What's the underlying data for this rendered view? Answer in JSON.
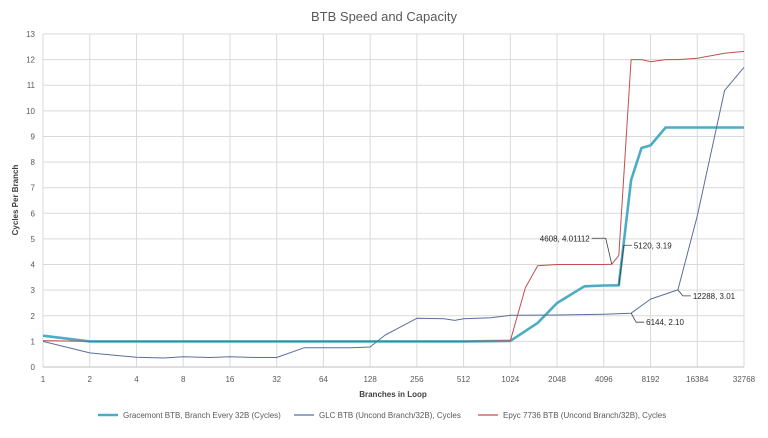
{
  "chart_data": {
    "type": "line",
    "title": "BTB Speed and Capacity",
    "xlabel": "Branches in Loop",
    "ylabel": "Cycles Per Branch",
    "x_scale": "log2",
    "xlim": [
      1,
      32768
    ],
    "ylim": [
      0,
      13
    ],
    "x_ticks": [
      1,
      2,
      4,
      8,
      16,
      32,
      64,
      128,
      256,
      512,
      1024,
      2048,
      4096,
      8192,
      16384,
      32768
    ],
    "y_ticks": [
      0,
      1,
      2,
      3,
      4,
      5,
      6,
      7,
      8,
      9,
      10,
      11,
      12,
      13
    ],
    "grid": "both",
    "legend_position": "bottom",
    "series": [
      {
        "name": "Gracemont BTB, Branch Every 32B (Cycles)",
        "color": "#4bacc6",
        "width": "thick",
        "points": [
          [
            1,
            1.22
          ],
          [
            2,
            1.0
          ],
          [
            4,
            1.0
          ],
          [
            8,
            1.0
          ],
          [
            16,
            1.0
          ],
          [
            32,
            1.0
          ],
          [
            64,
            1.0
          ],
          [
            128,
            1.0
          ],
          [
            256,
            1.0
          ],
          [
            512,
            1.0
          ],
          [
            1024,
            1.02
          ],
          [
            1536,
            1.72
          ],
          [
            2048,
            2.5
          ],
          [
            3072,
            3.15
          ],
          [
            4096,
            3.18
          ],
          [
            5120,
            3.19
          ],
          [
            6144,
            7.3
          ],
          [
            7168,
            8.55
          ],
          [
            8192,
            8.65
          ],
          [
            10240,
            9.35
          ],
          [
            12288,
            9.35
          ],
          [
            16384,
            9.35
          ],
          [
            24576,
            9.35
          ],
          [
            32768,
            9.35
          ]
        ]
      },
      {
        "name": "GLC BTB (Uncond Branch/32B), Cycles",
        "color": "#5a6f9c",
        "width": "thin",
        "points": [
          [
            1,
            1.0
          ],
          [
            2,
            0.55
          ],
          [
            3,
            0.45
          ],
          [
            4,
            0.38
          ],
          [
            6,
            0.35
          ],
          [
            8,
            0.4
          ],
          [
            12,
            0.37
          ],
          [
            16,
            0.4
          ],
          [
            24,
            0.37
          ],
          [
            32,
            0.37
          ],
          [
            48,
            0.75
          ],
          [
            64,
            0.75
          ],
          [
            96,
            0.75
          ],
          [
            128,
            0.78
          ],
          [
            160,
            1.25
          ],
          [
            192,
            1.5
          ],
          [
            256,
            1.9
          ],
          [
            384,
            1.88
          ],
          [
            448,
            1.82
          ],
          [
            512,
            1.88
          ],
          [
            768,
            1.92
          ],
          [
            1024,
            2.02
          ],
          [
            2048,
            2.03
          ],
          [
            4096,
            2.06
          ],
          [
            6144,
            2.1
          ],
          [
            8192,
            2.65
          ],
          [
            12288,
            3.01
          ],
          [
            16384,
            5.9
          ],
          [
            24576,
            10.8
          ],
          [
            32768,
            11.7
          ]
        ]
      },
      {
        "name": "Epyc 7736 BTB (Uncond Branch/32B), Cycles",
        "color": "#c0504d",
        "width": "thin",
        "points": [
          [
            1,
            1.03
          ],
          [
            2,
            1.0
          ],
          [
            4,
            1.0
          ],
          [
            8,
            1.0
          ],
          [
            16,
            1.0
          ],
          [
            32,
            1.0
          ],
          [
            64,
            1.0
          ],
          [
            128,
            1.0
          ],
          [
            256,
            1.0
          ],
          [
            512,
            1.0
          ],
          [
            1024,
            1.02
          ],
          [
            1280,
            3.1
          ],
          [
            1536,
            3.95
          ],
          [
            2048,
            4.0
          ],
          [
            3072,
            4.0
          ],
          [
            4096,
            4.0
          ],
          [
            4608,
            4.01
          ],
          [
            5120,
            4.35
          ],
          [
            6144,
            12.0
          ],
          [
            7168,
            12.0
          ],
          [
            8192,
            11.92
          ],
          [
            10240,
            12.0
          ],
          [
            12288,
            12.0
          ],
          [
            16384,
            12.05
          ],
          [
            24576,
            12.25
          ],
          [
            32768,
            12.32
          ]
        ]
      }
    ],
    "annotations": [
      {
        "label": "4608, 4.01112",
        "x": 4608,
        "y": 4.01112,
        "side": "left"
      },
      {
        "label": "5120, 3.19",
        "x": 5120,
        "y": 3.19,
        "side": "right"
      },
      {
        "label": "12288, 3.01",
        "x": 12288,
        "y": 3.01,
        "side": "right"
      },
      {
        "label": "6144, 2.10",
        "x": 6144,
        "y": 2.1,
        "side": "right"
      }
    ]
  }
}
